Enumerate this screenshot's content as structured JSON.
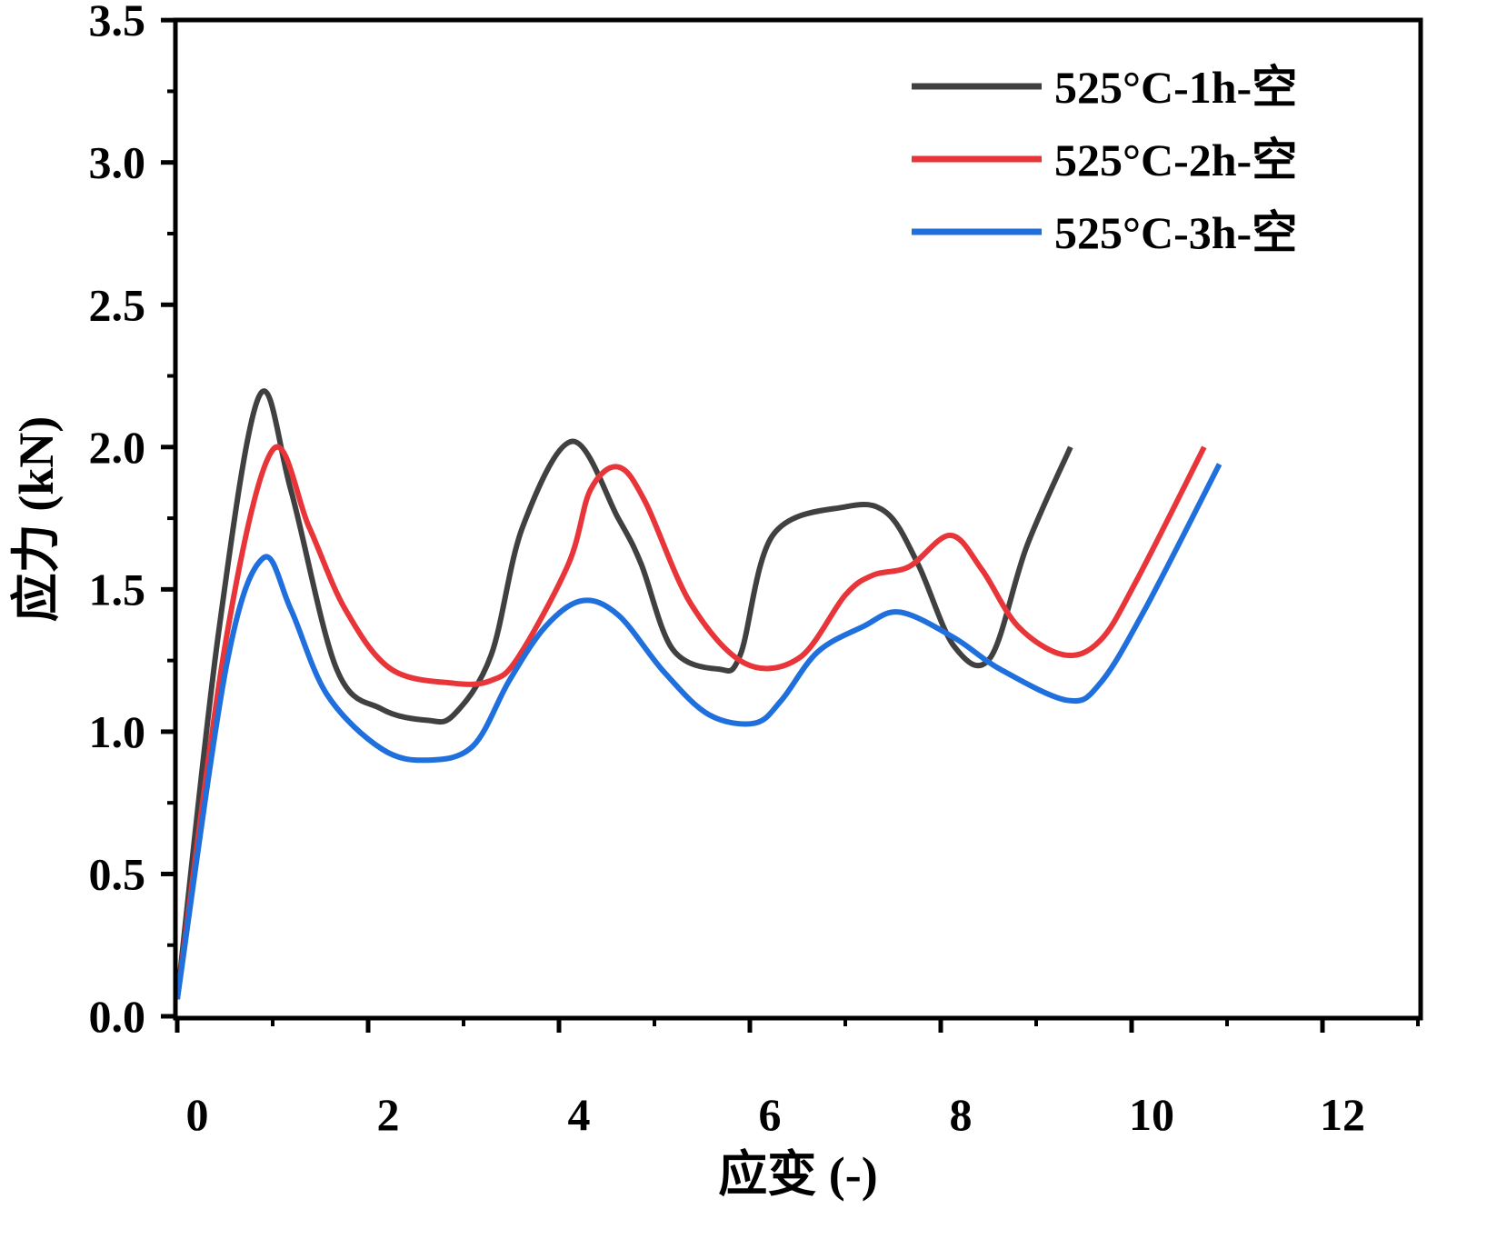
{
  "chart_data": {
    "type": "line",
    "title": "",
    "xlabel": "应变 (-)",
    "ylabel": "应力 (kN)",
    "xlim": [
      0,
      13
    ],
    "ylim": [
      0,
      3.5
    ],
    "xticks": [
      "0",
      "2",
      "4",
      "6",
      "8",
      "10",
      "12"
    ],
    "yticks": [
      "0.0",
      "0.5",
      "1.0",
      "1.5",
      "2.0",
      "2.5",
      "3.0",
      "3.5"
    ],
    "grid": false,
    "legend_position": "top-right",
    "series": [
      {
        "name": "525°C-1h-空",
        "color": "#404040",
        "x": [
          0,
          0.43,
          0.86,
          1.19,
          1.67,
          2.14,
          2.62,
          2.9,
          3.29,
          3.62,
          4.14,
          4.62,
          4.86,
          5.19,
          5.67,
          5.9,
          6.24,
          7.0,
          7.43,
          7.76,
          8.14,
          8.52,
          8.9,
          9.36
        ],
        "y": [
          0.06,
          1.34,
          2.18,
          1.85,
          1.22,
          1.08,
          1.04,
          1.06,
          1.27,
          1.72,
          2.02,
          1.75,
          1.59,
          1.29,
          1.22,
          1.27,
          1.69,
          1.79,
          1.77,
          1.59,
          1.3,
          1.26,
          1.65,
          2.0
        ]
      },
      {
        "name": "525°C-2h-空",
        "color": "#e8353a",
        "x": [
          0,
          0.52,
          1.0,
          1.38,
          1.76,
          2.24,
          2.9,
          3.29,
          3.57,
          4.1,
          4.33,
          4.62,
          4.9,
          5.38,
          5.95,
          6.52,
          7.0,
          7.29,
          7.67,
          8.1,
          8.43,
          8.81,
          9.29,
          9.67,
          10.05,
          10.76
        ],
        "y": [
          0.06,
          1.34,
          1.99,
          1.72,
          1.43,
          1.22,
          1.17,
          1.18,
          1.26,
          1.59,
          1.85,
          1.93,
          1.81,
          1.45,
          1.24,
          1.26,
          1.48,
          1.55,
          1.58,
          1.69,
          1.57,
          1.37,
          1.27,
          1.32,
          1.53,
          2.0
        ]
      },
      {
        "name": "525°C-3h-空",
        "color": "#1f6fdc",
        "x": [
          0,
          0.52,
          0.9,
          1.19,
          1.57,
          2.14,
          2.62,
          3.1,
          3.48,
          3.86,
          4.24,
          4.62,
          5.1,
          5.57,
          6.05,
          6.33,
          6.71,
          7.19,
          7.57,
          8.14,
          8.62,
          9.33,
          9.67,
          10.14,
          10.92
        ],
        "y": [
          0.06,
          1.24,
          1.61,
          1.43,
          1.13,
          0.94,
          0.9,
          0.95,
          1.18,
          1.37,
          1.46,
          1.41,
          1.21,
          1.06,
          1.03,
          1.11,
          1.28,
          1.37,
          1.42,
          1.33,
          1.22,
          1.11,
          1.17,
          1.43,
          1.94
        ]
      }
    ]
  }
}
